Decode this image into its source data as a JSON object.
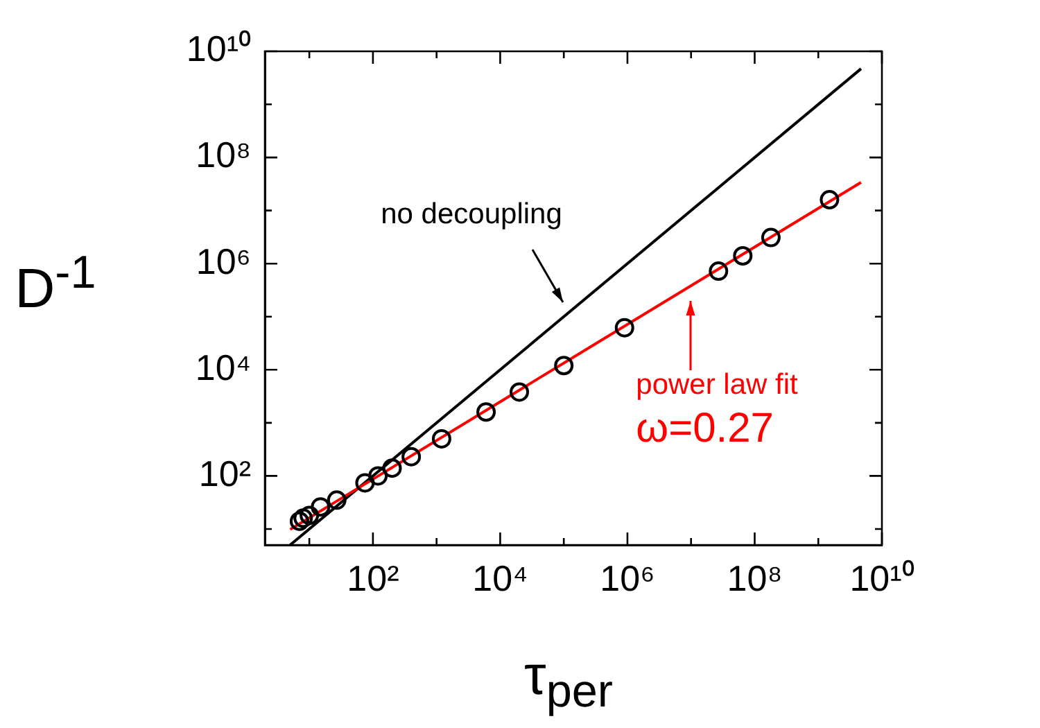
{
  "chart_data": {
    "type": "scatter",
    "xlabel": "τ$_{per}$",
    "ylabel": "D$^{-1}$",
    "log": "xy",
    "grid": false,
    "legend": false,
    "xlim": [
      2,
      10000000000
    ],
    "ylim": [
      5,
      10000000000
    ],
    "xticks": [
      {
        "value": 10,
        "label": null
      },
      {
        "value": 100,
        "label": "10²"
      },
      {
        "value": 1000,
        "label": null
      },
      {
        "value": 10000,
        "label": "10⁴"
      },
      {
        "value": 100000,
        "label": null
      },
      {
        "value": 1000000,
        "label": "10⁶"
      },
      {
        "value": 10000000,
        "label": null
      },
      {
        "value": 100000000,
        "label": "10⁸"
      },
      {
        "value": 1000000000,
        "label": null
      },
      {
        "value": 10000000000,
        "label": "10¹⁰"
      }
    ],
    "yticks": [
      {
        "value": 10,
        "label": null
      },
      {
        "value": 100,
        "label": "10²"
      },
      {
        "value": 1000,
        "label": null
      },
      {
        "value": 10000,
        "label": "10⁴"
      },
      {
        "value": 100000,
        "label": null
      },
      {
        "value": 1000000,
        "label": "10⁶"
      },
      {
        "value": 10000000,
        "label": null
      },
      {
        "value": 100000000,
        "label": "10⁸"
      },
      {
        "value": 1000000000,
        "label": null
      },
      {
        "value": 10000000000,
        "label": "10¹⁰"
      }
    ],
    "series": [
      {
        "color": "#000000",
        "marker": "circle",
        "x": [
          7,
          8,
          10,
          15,
          27,
          75,
          120,
          200,
          400,
          1200,
          6000,
          20000,
          100000,
          900000,
          27000000,
          65000000,
          180000000,
          1500000000
        ],
        "values": [
          14,
          16,
          18,
          26,
          35,
          74,
          100,
          140,
          230,
          500,
          1600,
          3800,
          12000,
          62000,
          720000,
          1400000,
          3100000,
          16000000
        ]
      },
      {
        "type": "line",
        "color": "#ff0000",
        "x": [
          5,
          4700000000
        ],
        "values": [
          9.8,
          34000000
        ]
      },
      {
        "type": "line",
        "color": "#000000",
        "x": [
          5,
          4700000000
        ],
        "values": [
          5,
          4700000000
        ]
      }
    ],
    "annotations": [
      "no decoupling",
      "power law fit",
      "ω=0.27"
    ]
  }
}
